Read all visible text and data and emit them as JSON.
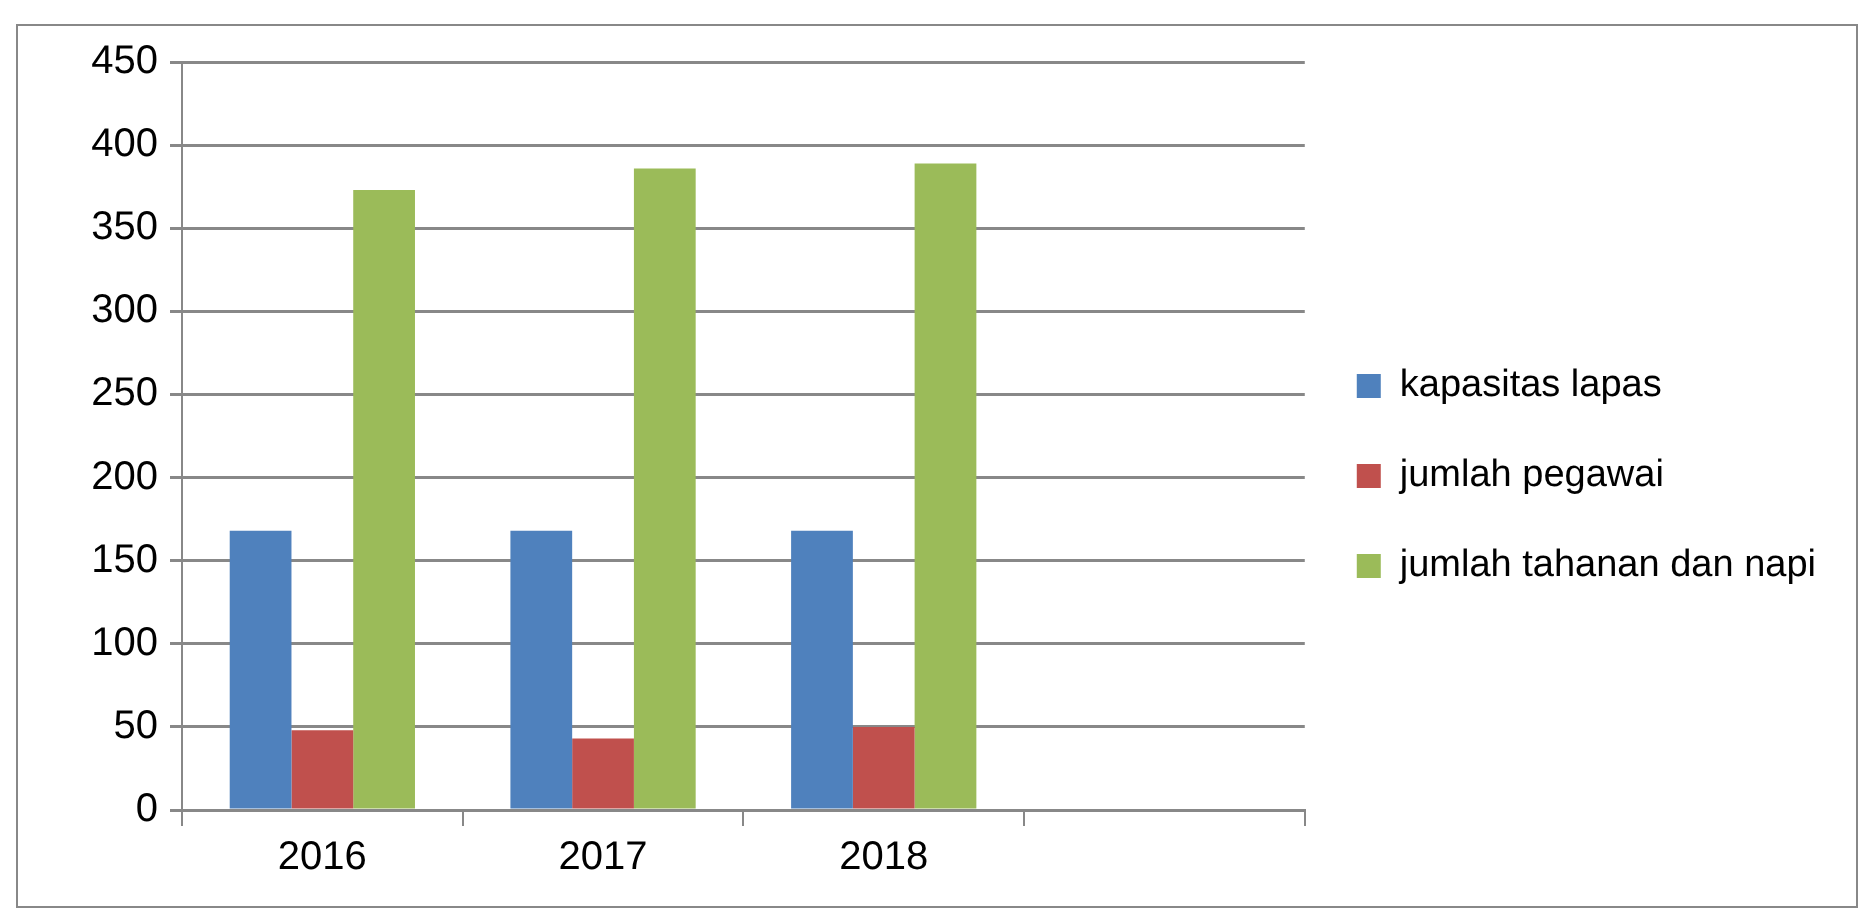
{
  "chart_data": {
    "type": "bar",
    "categories": [
      "2016",
      "2017",
      "2018",
      null
    ],
    "series": [
      {
        "name": "kapasitas lapas",
        "color": "#4f81bd",
        "values": [
          168,
          168,
          168,
          null
        ]
      },
      {
        "name": "jumlah pegawai",
        "color": "#c0504d",
        "values": [
          48,
          43,
          50,
          null
        ]
      },
      {
        "name": "jumlah tahanan dan napi",
        "color": "#9bbb59",
        "values": [
          373,
          386,
          389,
          null
        ]
      }
    ],
    "ylim": [
      0,
      450
    ],
    "yticks": [
      0,
      50,
      100,
      150,
      200,
      250,
      300,
      350,
      400,
      450
    ],
    "grid": "y",
    "legend": "right"
  }
}
